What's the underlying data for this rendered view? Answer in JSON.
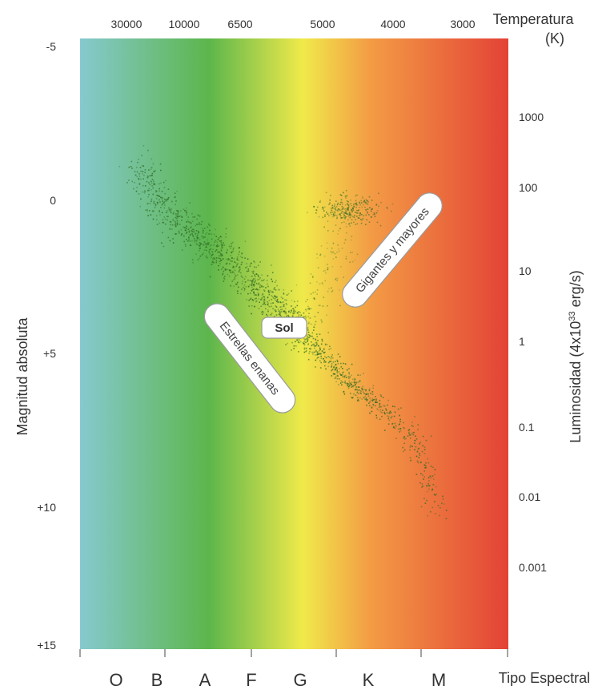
{
  "chart_data": {
    "type": "scatter",
    "title": "",
    "top_axis": {
      "label_line1": "Temperatura",
      "label_line2": "(K)",
      "ticks": [
        "30000",
        "10000",
        "6500",
        "5000",
        "4000",
        "3000"
      ]
    },
    "left_axis": {
      "label": "Magnitud absoluta",
      "ticks": [
        "-5",
        "0",
        "+5",
        "+10",
        "+15"
      ],
      "range": [
        -5,
        15
      ]
    },
    "right_axis": {
      "label": "Luminosidad (4x10",
      "label_exp": "33",
      "label_tail": " erg/s)",
      "ticks": [
        "1000",
        "100",
        "10",
        "1",
        "0.1",
        "0.01",
        "0.001"
      ]
    },
    "bottom_axis": {
      "label": "Tipo Espectral",
      "ticks": [
        "O",
        "B",
        "A",
        "F",
        "G",
        "K",
        "M"
      ]
    },
    "annotations": {
      "giants": "Gigantes y mayores",
      "dwarfs": "Estrellas enanas",
      "sun": "Sol"
    },
    "main_sequence": [
      {
        "color_index": 0.05,
        "magnitude": -1.0
      },
      {
        "color_index": 0.15,
        "magnitude": 0.6
      },
      {
        "color_index": 0.25,
        "magnitude": 1.4
      },
      {
        "color_index": 0.35,
        "magnitude": 2.2
      },
      {
        "color_index": 0.45,
        "magnitude": 3.1
      },
      {
        "color_index": 0.52,
        "magnitude": 3.9
      },
      {
        "color_index": 0.6,
        "magnitude": 4.8
      },
      {
        "color_index": 0.68,
        "magnitude": 5.6
      },
      {
        "color_index": 0.76,
        "magnitude": 6.4
      },
      {
        "color_index": 0.85,
        "magnitude": 7.1
      },
      {
        "color_index": 0.93,
        "magnitude": 7.9
      },
      {
        "color_index": 0.98,
        "magnitude": 9.0
      },
      {
        "color_index": 1.02,
        "magnitude": 10.5
      }
    ],
    "giant_branch_center": {
      "color_index": 0.74,
      "magnitude": 0.5
    },
    "colors": {
      "o_type": "#86c9cf",
      "a_type": "#5cb64c",
      "g_type": "#f0ea4a",
      "k_type": "#f39b45",
      "m_type": "#e34236",
      "stars": "#2f6b22"
    }
  }
}
